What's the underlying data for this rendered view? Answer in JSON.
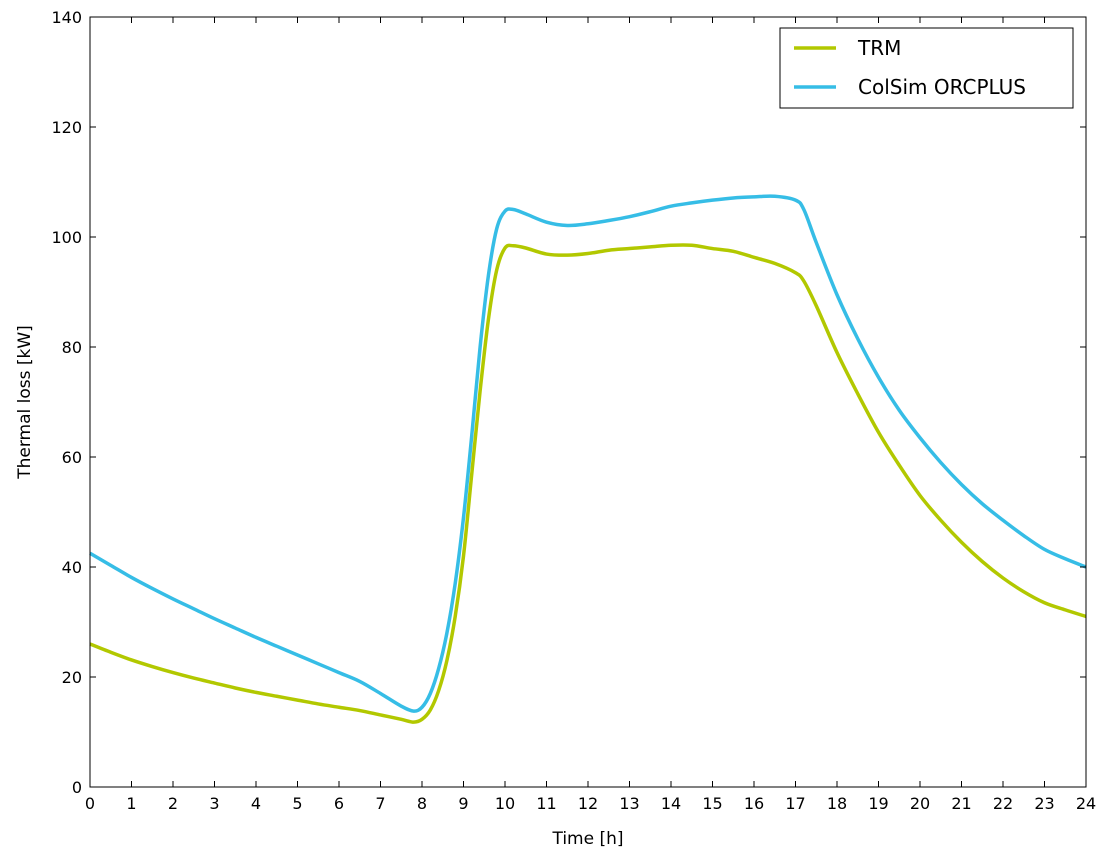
{
  "chart_data": {
    "type": "line",
    "title": "",
    "xlabel": "Time [h]",
    "ylabel": "Thermal loss [kW]",
    "xlim": [
      0,
      24
    ],
    "ylim": [
      0,
      140
    ],
    "xticks": [
      0,
      1,
      2,
      3,
      4,
      5,
      6,
      7,
      8,
      9,
      10,
      11,
      12,
      13,
      14,
      15,
      16,
      17,
      18,
      19,
      20,
      21,
      22,
      23,
      24
    ],
    "yticks": [
      0,
      20,
      40,
      60,
      80,
      100,
      120,
      140
    ],
    "grid": false,
    "legend_position": "top-right",
    "series": [
      {
        "name": "TRM",
        "color": "#b2c800",
        "x": [
          0,
          0.5,
          1,
          1.5,
          2,
          2.5,
          3,
          3.5,
          4,
          4.5,
          5,
          5.5,
          6,
          6.5,
          7,
          7.5,
          7.8,
          8.0,
          8.2,
          8.4,
          8.6,
          8.8,
          9.0,
          9.2,
          9.4,
          9.6,
          9.8,
          10.0,
          10.2,
          10.5,
          11,
          11.5,
          12,
          12.5,
          13,
          13.5,
          14,
          14.5,
          15,
          15.5,
          16,
          16.5,
          17,
          17.2,
          17.5,
          18,
          18.5,
          19,
          19.5,
          20,
          20.5,
          21,
          21.5,
          22,
          22.5,
          23,
          23.5,
          24
        ],
        "y": [
          26.0,
          24.5,
          23.1,
          21.9,
          20.8,
          19.8,
          18.9,
          18.0,
          17.2,
          16.5,
          15.8,
          15.1,
          14.5,
          13.9,
          13.1,
          12.3,
          11.8,
          12.3,
          14.0,
          17.5,
          23.0,
          31.0,
          42.0,
          57.0,
          72.0,
          85.0,
          94.0,
          98.0,
          98.4,
          98.0,
          96.9,
          96.7,
          97.0,
          97.6,
          97.9,
          98.2,
          98.5,
          98.5,
          97.9,
          97.4,
          96.3,
          95.2,
          93.5,
          92.0,
          87.5,
          79.0,
          71.5,
          64.5,
          58.5,
          53.0,
          48.5,
          44.5,
          41.0,
          38.0,
          35.5,
          33.5,
          32.2,
          31.0
        ]
      },
      {
        "name": "ColSim ORCPLUS",
        "color": "#36bde6",
        "x": [
          0,
          0.5,
          1,
          1.5,
          2,
          2.5,
          3,
          3.5,
          4,
          4.5,
          5,
          5.5,
          6,
          6.5,
          7,
          7.5,
          7.8,
          8.0,
          8.2,
          8.4,
          8.6,
          8.8,
          9.0,
          9.2,
          9.4,
          9.6,
          9.8,
          10.0,
          10.2,
          10.5,
          11,
          11.5,
          12,
          12.5,
          13,
          13.5,
          14,
          14.5,
          15,
          15.5,
          16,
          16.5,
          17,
          17.2,
          17.5,
          18,
          18.5,
          19,
          19.5,
          20,
          20.5,
          21,
          21.5,
          22,
          22.5,
          23,
          23.5,
          24
        ],
        "y": [
          42.5,
          40.3,
          38.1,
          36.1,
          34.2,
          32.4,
          30.6,
          28.9,
          27.2,
          25.6,
          24.0,
          22.4,
          20.8,
          19.2,
          17.0,
          14.7,
          13.8,
          14.5,
          17.0,
          21.5,
          28.0,
          37.0,
          49.0,
          64.0,
          80.0,
          93.0,
          101.5,
          104.7,
          105.0,
          104.2,
          102.7,
          102.1,
          102.4,
          103.0,
          103.7,
          104.6,
          105.6,
          106.2,
          106.7,
          107.1,
          107.3,
          107.4,
          106.7,
          105.0,
          99.0,
          89.5,
          81.5,
          74.5,
          68.5,
          63.5,
          59.0,
          55.0,
          51.5,
          48.5,
          45.7,
          43.2,
          41.5,
          40.0
        ]
      }
    ]
  }
}
